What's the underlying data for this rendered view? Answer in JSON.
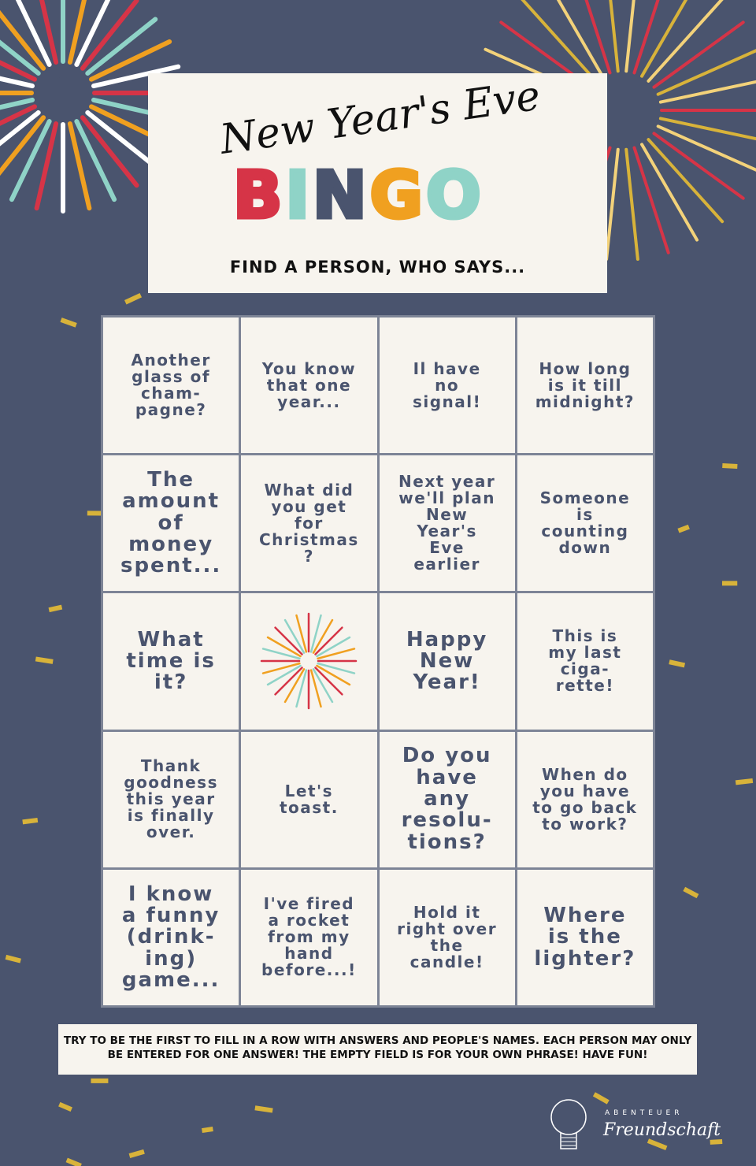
{
  "header": {
    "script_title": "New Year's Eve",
    "bingo_letters": [
      "B",
      "I",
      "N",
      "G",
      "O"
    ],
    "subtitle": "FIND A PERSON, WHO SAYS..."
  },
  "colors": {
    "background": "#4a546e",
    "card": "#f7f4ee",
    "red": "#d63447",
    "teal": "#8fd3c7",
    "navy": "#4a546e",
    "orange": "#f0a020",
    "gold": "#d8b33a"
  },
  "cells": [
    "Another\nglass of\ncham-\npagne?",
    "You know\nthat one\nyear...",
    "Il have\nno\nsignal!",
    "How long\nis it till\nmidnight?",
    "The\namount\nof\nmoney\nspent...",
    "What did\nyou get\nfor\nChristmas\n?",
    "Next year\nwe'll plan\nNew\nYear's\nEve\nearlier",
    "Someone\nis\ncounting\ndown",
    "What\ntime is\nit?",
    "",
    "Happy\nNew\nYear!",
    "This is\nmy last\nciga-\nrette!",
    "Thank\ngoodness\nthis year\nis finally\nover.",
    "Let's\ntoast.",
    "Do you\nhave\nany\nresolu-\ntions?",
    "When do\nyou have\nto go back\nto work?",
    "I know\na funny\n(drink-\ning)\ngame...",
    "I've fired\na rocket\nfrom my\nhand\nbefore...!",
    "Hold it\nright over\nthe\ncandle!",
    "Where\nis the\nlighter?"
  ],
  "footer": {
    "line1": "TRY TO BE THE FIRST TO FILL IN A ROW WITH ANSWERS AND PEOPLE'S NAMES. EACH PERSON MAY ONLY",
    "line2": "BE ENTERED FOR ONE ANSWER! THE EMPTY FIELD IS FOR YOUR  OWN PHRASE!     HAVE FUN!"
  },
  "logo": {
    "top": "ABENTEUER",
    "main": "Freundschaft",
    "icon": "lightbulb-icon"
  }
}
